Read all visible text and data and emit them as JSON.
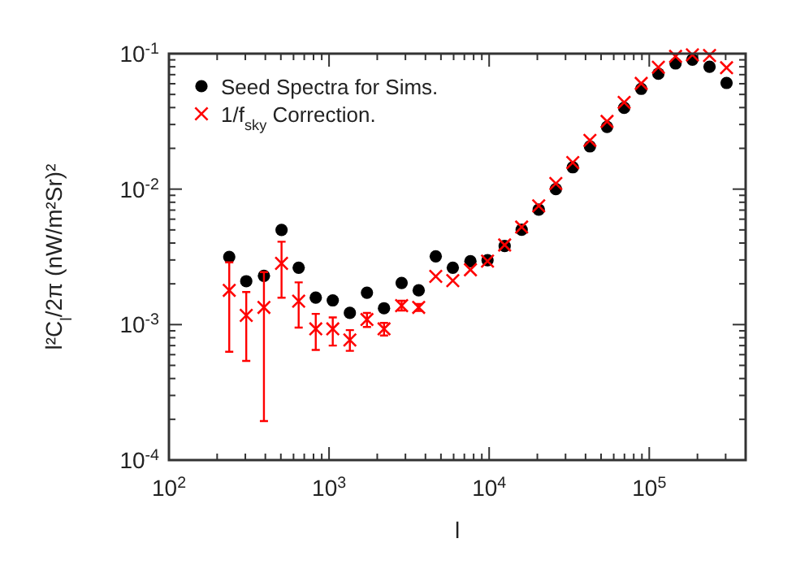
{
  "chart_data": {
    "type": "scatter",
    "xlabel": "l",
    "ylabel": "l²C$_{l}$/2π   (nW/m²Sr)²",
    "log": "xy",
    "grid": false,
    "legend": "top left",
    "x": [
      238,
      304,
      392,
      505,
      646,
      826,
      1055,
      1349,
      1725,
      2205,
      2840,
      3630,
      4640,
      5930,
      7640,
      9770,
      12500,
      15960,
      20400,
      26100,
      33300,
      42600,
      54500,
      69700,
      89100,
      114000,
      146000,
      186000,
      238000,
      304000
    ],
    "xlim": [
      100,
      400000
    ],
    "ylim": [
      0.0001,
      0.1
    ],
    "xticks": [
      {
        "value": 100,
        "label": "10$^{2}$"
      },
      {
        "value": 200,
        "label": null
      },
      {
        "value": 300,
        "label": null
      },
      {
        "value": 400,
        "label": null
      },
      {
        "value": 500,
        "label": null
      },
      {
        "value": 600,
        "label": null
      },
      {
        "value": 700,
        "label": null
      },
      {
        "value": 800,
        "label": null
      },
      {
        "value": 900,
        "label": null
      },
      {
        "value": 1000,
        "label": "10$^{3}$"
      },
      {
        "value": 2000,
        "label": null
      },
      {
        "value": 3000,
        "label": null
      },
      {
        "value": 4000,
        "label": null
      },
      {
        "value": 5000,
        "label": null
      },
      {
        "value": 6000,
        "label": null
      },
      {
        "value": 7000,
        "label": null
      },
      {
        "value": 8000,
        "label": null
      },
      {
        "value": 9000,
        "label": null
      },
      {
        "value": 10000,
        "label": "10$^{4}$"
      },
      {
        "value": 20000,
        "label": null
      },
      {
        "value": 30000,
        "label": null
      },
      {
        "value": 40000,
        "label": null
      },
      {
        "value": 50000,
        "label": null
      },
      {
        "value": 60000,
        "label": null
      },
      {
        "value": 70000,
        "label": null
      },
      {
        "value": 80000,
        "label": null
      },
      {
        "value": 90000,
        "label": null
      },
      {
        "value": 100000,
        "label": "10$^{5}$"
      },
      {
        "value": 200000,
        "label": null
      },
      {
        "value": 300000,
        "label": null
      }
    ],
    "yticks": [
      {
        "value": 0.0001,
        "label": "10$^{-4}$"
      },
      {
        "value": 0.0002,
        "label": null
      },
      {
        "value": 0.0003,
        "label": null
      },
      {
        "value": 0.0004,
        "label": null
      },
      {
        "value": 0.0005,
        "label": null
      },
      {
        "value": 0.0006,
        "label": null
      },
      {
        "value": 0.0007,
        "label": null
      },
      {
        "value": 0.0008,
        "label": null
      },
      {
        "value": 0.0009,
        "label": null
      },
      {
        "value": 0.001,
        "label": "10$^{-3}$"
      },
      {
        "value": 0.002,
        "label": null
      },
      {
        "value": 0.003,
        "label": null
      },
      {
        "value": 0.004,
        "label": null
      },
      {
        "value": 0.005,
        "label": null
      },
      {
        "value": 0.006,
        "label": null
      },
      {
        "value": 0.007,
        "label": null
      },
      {
        "value": 0.008,
        "label": null
      },
      {
        "value": 0.009,
        "label": null
      },
      {
        "value": 0.01,
        "label": "10$^{-2}$"
      },
      {
        "value": 0.02,
        "label": null
      },
      {
        "value": 0.03,
        "label": null
      },
      {
        "value": 0.04,
        "label": null
      },
      {
        "value": 0.05,
        "label": null
      },
      {
        "value": 0.06,
        "label": null
      },
      {
        "value": 0.07,
        "label": null
      },
      {
        "value": 0.08,
        "label": null
      },
      {
        "value": 0.09,
        "label": null
      },
      {
        "value": 0.1,
        "label": "10$^{-1}$"
      }
    ],
    "series": [
      {
        "name": "Seed Spectra for Sims.",
        "color": "#000000",
        "marker": "circle",
        "values": [
          0.00316,
          0.00209,
          0.00229,
          0.005,
          0.00263,
          0.00158,
          0.00151,
          0.00122,
          0.00172,
          0.00132,
          0.00203,
          0.00179,
          0.00319,
          0.00263,
          0.00294,
          0.00299,
          0.0038,
          0.00501,
          0.00705,
          0.01,
          0.0145,
          0.0207,
          0.0288,
          0.0398,
          0.055,
          0.0711,
          0.0847,
          0.0904,
          0.08,
          0.0608
        ]
      },
      {
        "name": "1/f$_{sky}$ Correction.",
        "color": "#ff0000",
        "marker": "cross",
        "values": [
          0.00179,
          0.00117,
          0.00134,
          0.00283,
          0.00149,
          0.00093,
          0.00093,
          0.00077,
          0.00109,
          0.00093,
          0.00138,
          0.00134,
          0.00227,
          0.00211,
          0.00254,
          0.00294,
          0.00387,
          0.00525,
          0.00752,
          0.011,
          0.0157,
          0.0229,
          0.0316,
          0.0437,
          0.0603,
          0.0794,
          0.0955,
          0.098,
          0.097,
          0.0787
        ],
        "errors": [
          [
            0.00063,
            0.00288
          ],
          [
            0.00054,
            0.00174
          ],
          [
            0.000194,
            0.00244
          ],
          [
            0.00158,
            0.00409
          ],
          [
            0.00095,
            0.00205
          ],
          [
            0.00065,
            0.0012
          ],
          [
            0.0007,
            0.00113
          ],
          [
            0.00064,
            0.00091
          ],
          [
            0.00096,
            0.00122
          ],
          [
            0.00083,
            0.00103
          ],
          [
            0.00127,
            0.0015
          ],
          [
            0.00126,
            0.00142
          ],
          null,
          null,
          null,
          null,
          null,
          null,
          null,
          null,
          null,
          null,
          null,
          null,
          null,
          null,
          null,
          null,
          null,
          null
        ]
      }
    ]
  }
}
